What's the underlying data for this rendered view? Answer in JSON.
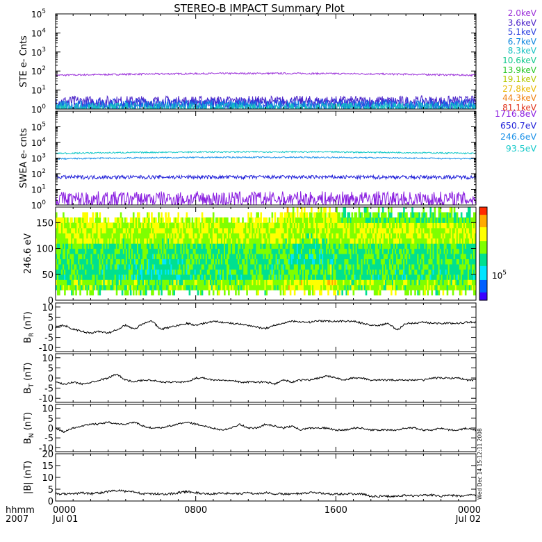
{
  "title": "STEREO-B IMPACT Summary Plot",
  "time_axis": {
    "corner_top": "hhmm",
    "corner_bottom": "2007",
    "ticks": [
      {
        "hhmm": "0000",
        "date": "Jul 01",
        "hour": 0
      },
      {
        "hhmm": "0800",
        "date": "",
        "hour": 8
      },
      {
        "hhmm": "1600",
        "date": "",
        "hour": 16
      },
      {
        "hhmm": "0000",
        "date": "Jul 02",
        "hour": 24
      }
    ]
  },
  "side_stamp": "Wed Dec 14 15:12:11 2008",
  "colorbar": {
    "label": "10",
    "label_sup": "5",
    "colors": [
      "#ff2a00",
      "#ffaa00",
      "#ffff00",
      "#7fff00",
      "#00e090",
      "#00e5ff",
      "#0060ff",
      "#3a00ff"
    ]
  },
  "ste_legend": [
    {
      "label": "2.0keV",
      "color": "#9b30d9"
    },
    {
      "label": "3.6keV",
      "color": "#4b23c8"
    },
    {
      "label": "5.1keV",
      "color": "#2a3fe0"
    },
    {
      "label": "6.7keV",
      "color": "#0a84e0"
    },
    {
      "label": "8.3keV",
      "color": "#16c2c2"
    },
    {
      "label": "10.6keV",
      "color": "#10c88c"
    },
    {
      "label": "13.9keV",
      "color": "#28c828"
    },
    {
      "label": "19.1keV",
      "color": "#b4c800"
    },
    {
      "label": "27.8keV",
      "color": "#e8b800"
    },
    {
      "label": "44.3keV",
      "color": "#f08010"
    },
    {
      "label": "81.1keV",
      "color": "#e03018"
    }
  ],
  "swea_legend": [
    {
      "label": "1716.8eV",
      "color": "#8a1ee0"
    },
    {
      "label": "650.7eV",
      "color": "#1c1cd8"
    },
    {
      "label": "246.6eV",
      "color": "#1a90e8"
    },
    {
      "label": "93.5eV",
      "color": "#12c8c8"
    }
  ],
  "chart_data": [
    {
      "type": "line",
      "panel": "ste",
      "ylabel": "STE e- Cnts",
      "yscale": "log",
      "ylim": [
        1,
        100000
      ],
      "y_ticks": [
        "10^0",
        "10^1",
        "10^2",
        "10^3",
        "10^4",
        "10^5"
      ],
      "x_unit": "hour",
      "xlim": [
        0,
        24
      ],
      "series": [
        {
          "name": "2.0keV",
          "level": 60,
          "noise": "low"
        },
        {
          "name": "3.6keV",
          "level": 2.5,
          "noise": "high"
        },
        {
          "name": "5.1keV",
          "level": 1.8,
          "noise": "high"
        },
        {
          "name": "6.7keV",
          "level": 1.4,
          "noise": "high"
        },
        {
          "name": "8.3keV",
          "level": 1.1,
          "noise": "high"
        }
      ]
    },
    {
      "type": "line",
      "panel": "swea",
      "ylabel": "SWEA e- cnts",
      "yscale": "log",
      "ylim": [
        1,
        1000000
      ],
      "y_ticks": [
        "10^0",
        "10^1",
        "10^2",
        "10^3",
        "10^4",
        "10^5"
      ],
      "x_unit": "hour",
      "xlim": [
        0,
        24
      ],
      "series": [
        {
          "name": "93.5eV",
          "level": 2000,
          "noise": "low"
        },
        {
          "name": "246.6eV",
          "level": 900,
          "noise": "low"
        },
        {
          "name": "650.7eV",
          "level": 60,
          "noise": "mid"
        },
        {
          "name": "1716.8eV",
          "level": 3,
          "noise": "spiky"
        }
      ]
    },
    {
      "type": "heatmap",
      "panel": "pad",
      "ylabel": "246.6 eV",
      "ylim": [
        0,
        180
      ],
      "y_ticks": [
        0,
        50,
        100,
        150
      ],
      "x_unit": "hour",
      "xlim": [
        0,
        24
      ],
      "note": "pitch-angle spectrogram, high flux (red/orange) near 0-30 deg, peak around 15h"
    },
    {
      "type": "line",
      "panel": "br",
      "ylabel": "B_R (nT)",
      "ylim": [
        -12,
        12
      ],
      "y_ticks": [
        -10,
        -5,
        0,
        5,
        10
      ],
      "x_unit": "hour",
      "x": [
        0,
        0.5,
        1,
        1.5,
        2,
        2.5,
        3,
        3.5,
        4,
        4.5,
        5,
        5.5,
        6,
        6.5,
        7,
        7.5,
        8,
        8.5,
        9,
        9.5,
        10,
        10.5,
        11,
        11.5,
        12,
        12.5,
        13,
        13.5,
        14,
        14.5,
        15,
        15.5,
        16,
        16.5,
        17,
        17.5,
        18,
        18.5,
        19,
        19.5,
        20,
        20.5,
        21,
        21.5,
        22,
        22.5,
        23,
        23.5,
        24
      ],
      "y": [
        0,
        1,
        -1,
        -2,
        -3,
        -2,
        -3,
        -1,
        1,
        -1,
        2,
        3,
        -1,
        0,
        1,
        2,
        1,
        2,
        3,
        2.5,
        2,
        1.5,
        1,
        0,
        -0.5,
        1,
        2,
        3,
        2.5,
        2.5,
        3,
        3,
        3,
        3,
        3,
        2,
        1,
        1,
        2,
        -1.5,
        2,
        2,
        2.5,
        2,
        2,
        2,
        2,
        2.5,
        2.5
      ]
    },
    {
      "type": "line",
      "panel": "bt",
      "ylabel": "B_T (nT)",
      "ylim": [
        -12,
        12
      ],
      "y_ticks": [
        -10,
        -5,
        0,
        5,
        10
      ],
      "x_unit": "hour",
      "x": [
        0,
        0.5,
        1,
        1.5,
        2,
        2.5,
        3,
        3.5,
        4,
        4.5,
        5,
        5.5,
        6,
        6.5,
        7,
        7.5,
        8,
        8.5,
        9,
        9.5,
        10,
        10.5,
        11,
        11.5,
        12,
        12.5,
        13,
        13.5,
        14,
        14.5,
        15,
        15.5,
        16,
        16.5,
        17,
        17.5,
        18,
        18.5,
        19,
        19.5,
        20,
        20.5,
        21,
        21.5,
        22,
        22.5,
        23,
        23.5,
        24
      ],
      "y": [
        -2,
        -3,
        -2,
        -3,
        -2,
        -1,
        0,
        2,
        -1,
        -2,
        -1,
        -1,
        -2,
        -2,
        -2,
        -2,
        0,
        0,
        -1,
        -1,
        -1,
        -2,
        -2,
        -2,
        -2,
        -3,
        -1,
        -2,
        -1,
        -1,
        0,
        1,
        0,
        -1,
        0,
        0,
        -1,
        -1,
        -1,
        -1,
        -1,
        -1,
        -1,
        0,
        0,
        0,
        0,
        -1,
        -1
      ]
    },
    {
      "type": "line",
      "panel": "bn",
      "ylabel": "B_N (nT)",
      "ylim": [
        -12,
        12
      ],
      "y_ticks": [
        -10,
        -5,
        0,
        5,
        10
      ],
      "x_unit": "hour",
      "x": [
        0,
        0.5,
        1,
        1.5,
        2,
        2.5,
        3,
        3.5,
        4,
        4.5,
        5,
        5.5,
        6,
        6.5,
        7,
        7.5,
        8,
        8.5,
        9,
        9.5,
        10,
        10.5,
        11,
        11.5,
        12,
        12.5,
        13,
        13.5,
        14,
        14.5,
        15,
        15.5,
        16,
        16.5,
        17,
        17.5,
        18,
        18.5,
        19,
        19.5,
        20,
        20.5,
        21,
        21.5,
        22,
        22.5,
        23,
        23.5,
        24
      ],
      "y": [
        0,
        -2,
        0,
        1,
        2,
        2,
        3,
        2,
        2,
        3,
        1,
        0,
        0,
        1,
        2,
        3,
        2,
        1,
        0,
        -1,
        0,
        2,
        0,
        0,
        2,
        1,
        0,
        1,
        -1,
        0,
        0,
        0,
        -1,
        -1,
        0,
        0,
        -1,
        -1,
        -1,
        -1,
        0,
        0,
        -1,
        -1,
        0,
        -1,
        -1,
        0,
        -1
      ]
    },
    {
      "type": "line",
      "panel": "bmag",
      "ylabel": "|B| (nT)",
      "ylim": [
        0,
        20
      ],
      "y_ticks": [
        0,
        5,
        10,
        15,
        20
      ],
      "x_unit": "hour",
      "x": [
        0,
        0.5,
        1,
        1.5,
        2,
        2.5,
        3,
        3.5,
        4,
        4.5,
        5,
        5.5,
        6,
        6.5,
        7,
        7.5,
        8,
        8.5,
        9,
        9.5,
        10,
        10.5,
        11,
        11.5,
        12,
        12.5,
        13,
        13.5,
        14,
        14.5,
        15,
        15.5,
        16,
        16.5,
        17,
        17.5,
        18,
        18.5,
        19,
        19.5,
        20,
        20.5,
        21,
        21.5,
        22,
        22.5,
        23,
        23.5,
        24
      ],
      "y": [
        3,
        3,
        3,
        3.5,
        3,
        3.5,
        4,
        4.5,
        4,
        4,
        3,
        3,
        3,
        3,
        3.5,
        4,
        3.5,
        3,
        3,
        3.5,
        3,
        3,
        3.5,
        3,
        3.5,
        3,
        3,
        3,
        3,
        3.5,
        3.5,
        3,
        3,
        3,
        3,
        3,
        2,
        2,
        2,
        2,
        2.5,
        2,
        2.5,
        2.5,
        2,
        2.5,
        2,
        2.5,
        2.5
      ]
    }
  ]
}
